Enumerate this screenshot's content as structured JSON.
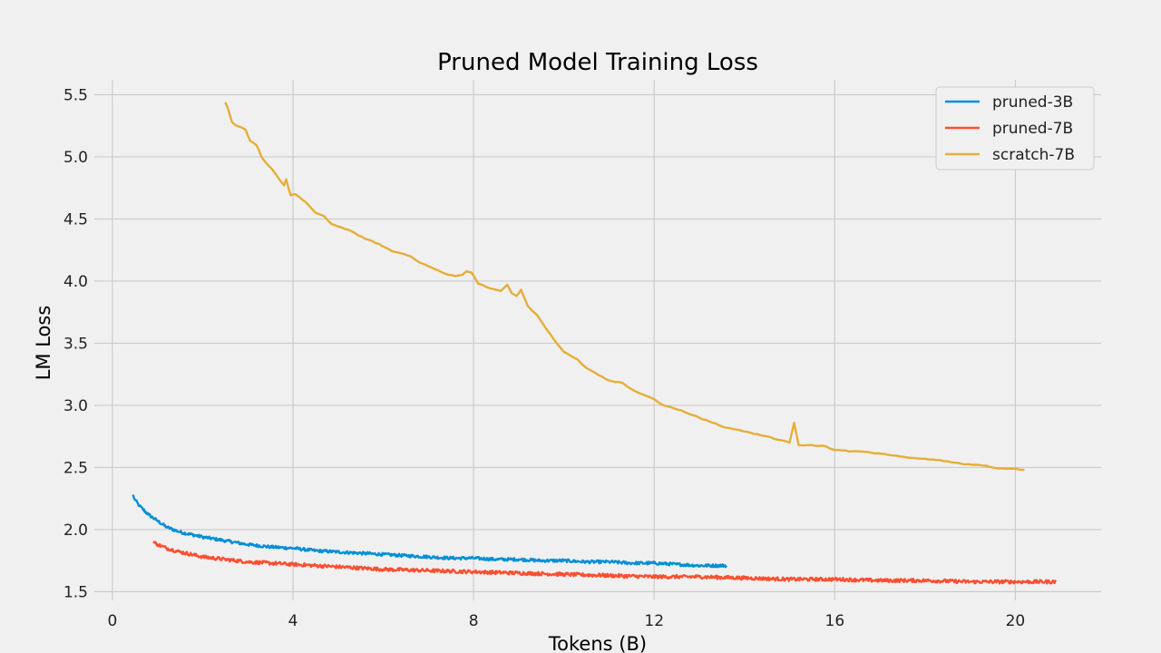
{
  "chart_data": {
    "type": "line",
    "title": "Pruned Model Training Loss",
    "xlabel": "Tokens (B)",
    "ylabel": "LM Loss",
    "xlim": [
      -0.4,
      21.9
    ],
    "ylim": [
      1.43,
      5.62
    ],
    "xticks": [
      0,
      4,
      8,
      12,
      16,
      20
    ],
    "yticks": [
      1.5,
      2.0,
      2.5,
      3.0,
      3.5,
      4.0,
      4.5,
      5.0,
      5.5
    ],
    "grid": true,
    "legend_position": "top-right",
    "series": [
      {
        "name": "pruned-3B",
        "color": "#008fd5",
        "x": [
          0.45,
          0.5,
          0.6,
          0.8,
          1.0,
          1.2,
          1.5,
          2.0,
          2.5,
          3.0,
          3.5,
          4.0,
          4.5,
          5.0,
          5.5,
          6.0,
          6.5,
          7.0,
          7.5,
          8.0,
          8.5,
          9.0,
          9.5,
          10.0,
          10.5,
          11.0,
          11.5,
          12.0,
          12.5,
          13.0,
          13.6
        ],
        "y": [
          2.28,
          2.24,
          2.19,
          2.12,
          2.07,
          2.02,
          1.98,
          1.94,
          1.91,
          1.88,
          1.86,
          1.85,
          1.83,
          1.82,
          1.81,
          1.8,
          1.79,
          1.78,
          1.77,
          1.77,
          1.76,
          1.76,
          1.75,
          1.75,
          1.74,
          1.74,
          1.73,
          1.73,
          1.72,
          1.71,
          1.71
        ],
        "noise": 0.012
      },
      {
        "name": "pruned-7B",
        "color": "#fc4f30",
        "x": [
          0.9,
          1.0,
          1.2,
          1.5,
          2.0,
          2.5,
          3.0,
          3.5,
          4.0,
          5.0,
          6.0,
          7.0,
          8.0,
          9.0,
          10.0,
          11.0,
          12.0,
          13.0,
          14.0,
          15.0,
          16.0,
          17.0,
          18.0,
          19.0,
          20.0,
          20.9
        ],
        "y": [
          1.9,
          1.88,
          1.85,
          1.82,
          1.78,
          1.76,
          1.74,
          1.73,
          1.72,
          1.7,
          1.68,
          1.67,
          1.66,
          1.65,
          1.64,
          1.63,
          1.62,
          1.62,
          1.61,
          1.6,
          1.6,
          1.59,
          1.59,
          1.58,
          1.58,
          1.58
        ],
        "noise": 0.014
      },
      {
        "name": "scratch-7B",
        "color": "#e5ae38",
        "x": [
          2.5,
          2.55,
          2.65,
          2.75,
          2.95,
          3.05,
          3.2,
          3.3,
          3.6,
          3.8,
          3.85,
          3.95,
          4.05,
          4.3,
          4.5,
          4.7,
          4.85,
          5.0,
          5.3,
          5.6,
          5.9,
          6.2,
          6.6,
          6.8,
          7.0,
          7.3,
          7.45,
          7.6,
          7.75,
          7.85,
          7.95,
          8.1,
          8.3,
          8.6,
          8.75,
          8.85,
          8.95,
          9.05,
          9.2,
          9.4,
          9.6,
          9.8,
          10.0,
          10.3,
          10.5,
          10.7,
          11.0,
          11.3,
          11.5,
          11.8,
          12.0,
          12.2,
          12.6,
          13.0,
          13.3,
          13.6,
          13.9,
          14.2,
          14.5,
          14.8,
          15.0,
          15.1,
          15.2,
          15.4,
          15.8,
          16.0,
          16.4,
          16.8,
          17.2,
          17.6,
          18.0,
          18.5,
          18.8,
          19.2,
          19.5,
          19.8,
          20.0,
          20.2
        ],
        "y": [
          5.44,
          5.4,
          5.28,
          5.25,
          5.22,
          5.13,
          5.09,
          5.0,
          4.87,
          4.77,
          4.82,
          4.69,
          4.7,
          4.63,
          4.55,
          4.52,
          4.46,
          4.44,
          4.4,
          4.34,
          4.3,
          4.24,
          4.2,
          4.15,
          4.12,
          4.07,
          4.05,
          4.04,
          4.05,
          4.08,
          4.07,
          3.98,
          3.95,
          3.92,
          3.97,
          3.9,
          3.88,
          3.93,
          3.8,
          3.73,
          3.62,
          3.52,
          3.43,
          3.37,
          3.3,
          3.26,
          3.2,
          3.18,
          3.13,
          3.08,
          3.05,
          3.0,
          2.96,
          2.9,
          2.86,
          2.82,
          2.8,
          2.77,
          2.75,
          2.72,
          2.7,
          2.86,
          2.68,
          2.68,
          2.67,
          2.64,
          2.63,
          2.62,
          2.6,
          2.58,
          2.57,
          2.55,
          2.53,
          2.52,
          2.5,
          2.49,
          2.49,
          2.48
        ],
        "noise": 0.004
      }
    ]
  }
}
